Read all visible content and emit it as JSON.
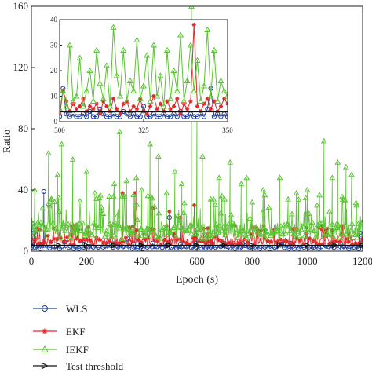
{
  "chart_data": {
    "type": "line",
    "xlabel": "Epoch (s)",
    "ylabel": "Ratio",
    "xlim": [
      0,
      1200
    ],
    "ylim": [
      0,
      160
    ],
    "xticks": [
      0,
      200,
      400,
      600,
      800,
      1000,
      1200
    ],
    "yticks": [
      0,
      40,
      80,
      120,
      160
    ],
    "grid": false,
    "legend_position": "bottom-left",
    "series": [
      {
        "name": "WLS",
        "color": "#1f3f9a",
        "marker": "circle",
        "spikes": [
          [
            2,
            18
          ],
          [
            10,
            12
          ],
          [
            45,
            39
          ],
          [
            120,
            6
          ],
          [
            200,
            4
          ],
          [
            350,
            8
          ],
          [
            500,
            22
          ],
          [
            600,
            14
          ],
          [
            700,
            5
          ],
          [
            900,
            6
          ],
          [
            1190,
            12
          ]
        ]
      },
      {
        "name": "EKF",
        "color": "#e02a2a",
        "marker": "star",
        "spikes": [
          [
            60,
            10
          ],
          [
            160,
            15
          ],
          [
            330,
            38
          ],
          [
            375,
            38
          ],
          [
            440,
            28
          ],
          [
            500,
            26
          ],
          [
            540,
            22
          ],
          [
            590,
            30
          ],
          [
            640,
            15
          ],
          [
            760,
            11
          ],
          [
            880,
            14
          ],
          [
            1000,
            9
          ],
          [
            1150,
            12
          ]
        ]
      },
      {
        "name": "IEKF",
        "color": "#5cc334",
        "marker": "triangle",
        "spikes": [
          [
            12,
            40
          ],
          [
            40,
            28
          ],
          [
            62,
            64
          ],
          [
            95,
            50
          ],
          [
            110,
            70
          ],
          [
            150,
            60
          ],
          [
            200,
            52
          ],
          [
            230,
            38
          ],
          [
            300,
            44
          ],
          [
            320,
            78
          ],
          [
            345,
            46
          ],
          [
            380,
            48
          ],
          [
            400,
            40
          ],
          [
            430,
            70
          ],
          [
            460,
            62
          ],
          [
            490,
            38
          ],
          [
            520,
            52
          ],
          [
            545,
            44
          ],
          [
            580,
            160
          ],
          [
            600,
            95
          ],
          [
            620,
            62
          ],
          [
            650,
            34
          ],
          [
            680,
            48
          ],
          [
            700,
            34
          ],
          [
            720,
            58
          ],
          [
            760,
            44
          ],
          [
            780,
            48
          ],
          [
            800,
            32
          ],
          [
            840,
            40
          ],
          [
            870,
            28
          ],
          [
            900,
            48
          ],
          [
            930,
            34
          ],
          [
            960,
            38
          ],
          [
            1000,
            40
          ],
          [
            1035,
            30
          ],
          [
            1060,
            72
          ],
          [
            1090,
            48
          ],
          [
            1110,
            58
          ],
          [
            1140,
            55
          ],
          [
            1160,
            50
          ],
          [
            1185,
            18
          ]
        ]
      },
      {
        "name": "Test threshold",
        "color": "#111111",
        "marker": "triangle-right",
        "value": 3.84
      }
    ],
    "inset": {
      "xlim": [
        300,
        350
      ],
      "ylim": [
        0,
        40
      ],
      "xticks": [
        300,
        325,
        350
      ],
      "yticks": [
        0,
        10,
        20,
        30,
        40
      ],
      "series": [
        {
          "name": "WLS",
          "values": [
            2,
            13,
            3,
            2,
            3,
            2,
            2,
            3,
            2,
            4,
            2,
            2,
            5,
            3,
            2,
            2,
            3,
            2,
            2,
            4,
            3,
            2,
            3,
            2,
            2,
            6,
            2,
            2,
            3,
            2,
            2,
            3,
            2,
            2,
            3,
            2,
            4,
            2,
            2,
            3,
            2,
            2,
            3,
            2,
            5,
            13,
            2,
            3,
            2,
            3,
            2
          ]
        },
        {
          "name": "EKF",
          "values": [
            3,
            12,
            8,
            4,
            7,
            5,
            6,
            9,
            4,
            6,
            5,
            7,
            3,
            8,
            6,
            4,
            9,
            5,
            3,
            7,
            8,
            4,
            6,
            5,
            9,
            4,
            3,
            6,
            10,
            5,
            7,
            4,
            8,
            5,
            6,
            9,
            3,
            7,
            5,
            8,
            38,
            6,
            4,
            7,
            9,
            5,
            8,
            4,
            6,
            9,
            7
          ]
        },
        {
          "name": "IEKF",
          "values": [
            5,
            12,
            6,
            30,
            8,
            10,
            25,
            6,
            12,
            20,
            8,
            28,
            15,
            9,
            22,
            6,
            37,
            18,
            10,
            28,
            8,
            16,
            12,
            32,
            9,
            14,
            26,
            8,
            30,
            10,
            18,
            6,
            28,
            9,
            20,
            12,
            34,
            8,
            16,
            30,
            12,
            24,
            8,
            14,
            36,
            10,
            28,
            8,
            16,
            12,
            10
          ]
        },
        {
          "name": "Test threshold",
          "value": 3.84
        }
      ]
    }
  }
}
